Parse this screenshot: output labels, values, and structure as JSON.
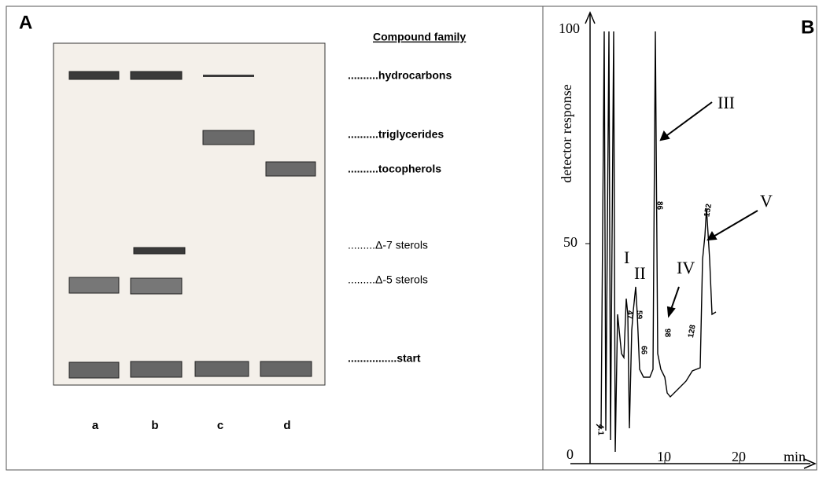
{
  "panel_a": {
    "label": "A",
    "header": "Compound family",
    "families": [
      "..........hydrocarbons",
      "..........triglycerides",
      "..........tocopherols",
      ".........Δ-7 sterols",
      ".........Δ-5 sterols",
      "................start"
    ],
    "lanes": [
      "a",
      "b",
      "c",
      "d"
    ]
  },
  "panel_b": {
    "label": "B",
    "y_label": "detector response",
    "x_label": "min",
    "yticks": [
      "100",
      "50"
    ],
    "xticks": [
      "0",
      "10",
      "20"
    ],
    "annotations": [
      "I",
      "II",
      "III",
      "IV",
      "V"
    ],
    "peak_labels": [
      "4.1",
      "47",
      "59",
      "66",
      "86",
      "98",
      "128",
      "152"
    ]
  }
}
